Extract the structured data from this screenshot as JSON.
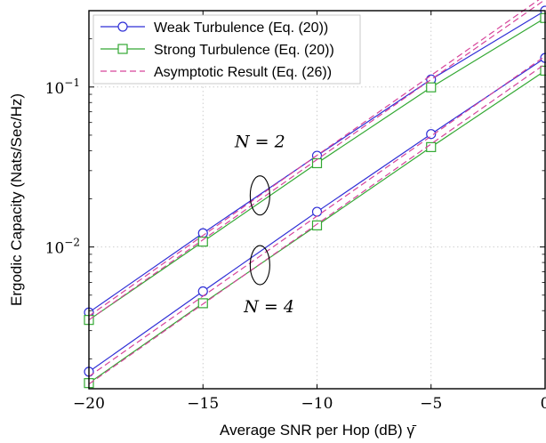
{
  "chart_data": {
    "type": "line",
    "xlabel": "Average SNR per Hop (dB) γ̄",
    "ylabel": "Ergodic Capacity (Nats/Sec/Hz)",
    "x_ticks": [
      -20,
      -15,
      -10,
      -5,
      0
    ],
    "x_tick_labels": [
      "−20",
      "−15",
      "−10",
      "−5",
      "0"
    ],
    "y_ticks": [
      0.01,
      0.1
    ],
    "y_tick_labels": [
      [
        "10",
        "−2"
      ],
      [
        "10",
        "−1"
      ]
    ],
    "xlim": [
      -20,
      0
    ],
    "ylim": [
      0.0013,
      0.3
    ],
    "yscale": "log",
    "grid": true,
    "legend_position": "top-left",
    "legend": [
      {
        "label": "Weak Turbulence (Eq. (20))",
        "color": "#2f2fd6",
        "style": "solid",
        "marker": "circle"
      },
      {
        "label": "Strong Turbulence (Eq. (20))",
        "color": "#33a833",
        "style": "solid",
        "marker": "square"
      },
      {
        "label": "Asymptotic Result (Eq. (26))",
        "color": "#d6449a",
        "style": "dashed",
        "marker": "none"
      }
    ],
    "x": [
      -20,
      -15,
      -10,
      -5,
      0
    ],
    "series": [
      {
        "group": "N=2",
        "legend_index": 0,
        "values": [
          0.0039,
          0.0122,
          0.0372,
          0.1115,
          0.3
        ]
      },
      {
        "group": "N=2",
        "legend_index": 1,
        "values": [
          0.0035,
          0.0108,
          0.0334,
          0.0995,
          0.27
        ]
      },
      {
        "group": "N=2",
        "legend_index": 2,
        "values": [
          0.0037,
          0.0118,
          0.0374,
          0.1182,
          0.374
        ]
      },
      {
        "group": "N=2",
        "legend_index": 2,
        "values": [
          0.0035,
          0.0111,
          0.0352,
          0.1114,
          0.352
        ]
      },
      {
        "group": "N=4",
        "legend_index": 0,
        "values": [
          0.00166,
          0.00528,
          0.0166,
          0.0508,
          0.152
        ]
      },
      {
        "group": "N=4",
        "legend_index": 1,
        "values": [
          0.00141,
          0.00445,
          0.01365,
          0.0421,
          0.1265
        ]
      },
      {
        "group": "N=4",
        "legend_index": 2,
        "values": [
          0.00155,
          0.00493,
          0.0156,
          0.0493,
          0.1559
        ]
      },
      {
        "group": "N=4",
        "legend_index": 2,
        "values": [
          0.00139,
          0.0044,
          0.0139,
          0.044,
          0.1392
        ]
      }
    ],
    "annotations": [
      {
        "text": "N = 2",
        "x": -12.5,
        "y": 0.042
      },
      {
        "text": "N = 4",
        "x": -12.1,
        "y": 0.0039
      }
    ],
    "ellipses": [
      {
        "x": -12.5,
        "y": 0.021,
        "group": "N=2"
      },
      {
        "x": -12.5,
        "y": 0.0077,
        "group": "N=4"
      }
    ]
  }
}
